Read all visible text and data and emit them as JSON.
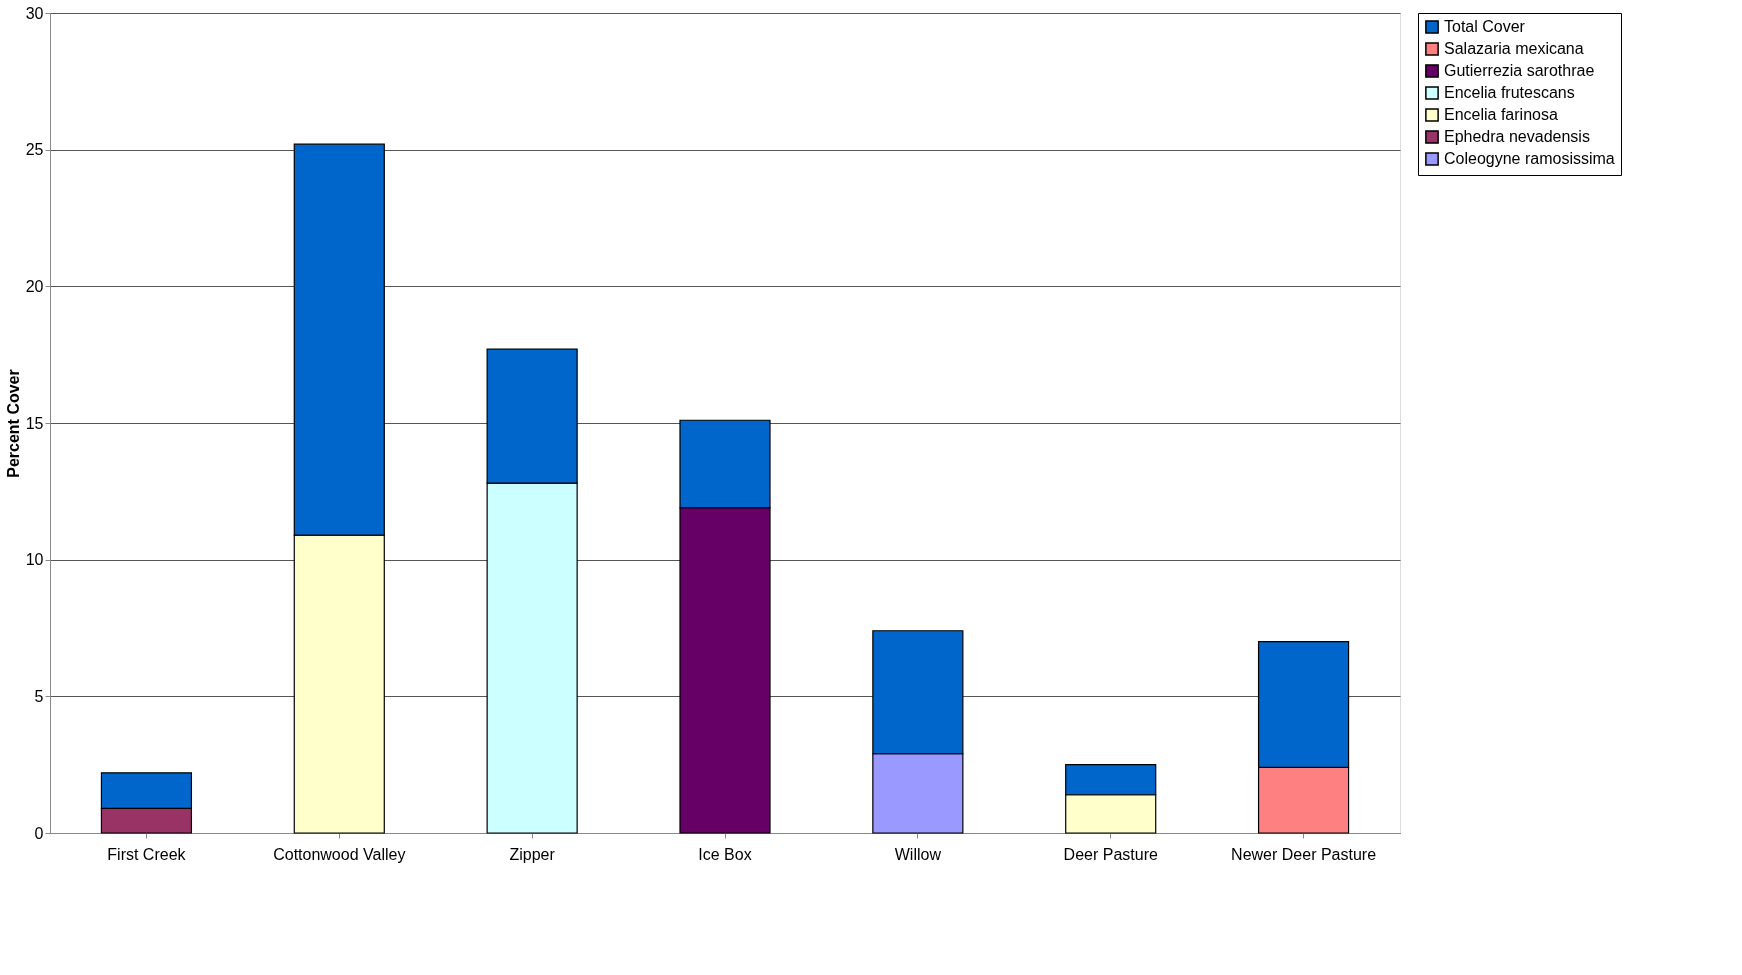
{
  "chart_data": {
    "type": "bar",
    "stacked": true,
    "ylabel": "Percent Cover",
    "categories": [
      "First Creek",
      "Cottonwood Valley",
      "Zipper",
      "Ice Box",
      "Willow",
      "Deer Pasture",
      "Newer Deer Pasture"
    ],
    "series": [
      {
        "name": "Coleogyne ramosissima",
        "color": "#9999ff",
        "values": [
          null,
          null,
          null,
          null,
          2.9,
          null,
          null
        ]
      },
      {
        "name": "Ephedra nevadensis",
        "color": "#993366",
        "values": [
          0.9,
          null,
          null,
          null,
          null,
          null,
          null
        ]
      },
      {
        "name": "Encelia farinosa",
        "color": "#ffffcc",
        "values": [
          null,
          10.9,
          null,
          null,
          null,
          1.4,
          null
        ]
      },
      {
        "name": "Encelia frutescans",
        "color": "#ccffff",
        "values": [
          null,
          null,
          12.8,
          null,
          null,
          null,
          null
        ]
      },
      {
        "name": "Gutierrezia sarothrae",
        "color": "#660066",
        "values": [
          null,
          null,
          null,
          11.9,
          null,
          null,
          null
        ]
      },
      {
        "name": "Salazaria mexicana",
        "color": "#ff8080",
        "values": [
          null,
          null,
          null,
          null,
          null,
          null,
          2.4
        ]
      },
      {
        "name": "Total Cover",
        "color": "#0066cc",
        "values": [
          1.3,
          14.3,
          4.9,
          3.2,
          4.5,
          1.1,
          4.6
        ]
      }
    ],
    "ylim": [
      0,
      30
    ],
    "yticks": [
      0,
      5,
      10,
      15,
      20,
      25,
      30
    ],
    "grid": "y",
    "legend": "top right"
  }
}
